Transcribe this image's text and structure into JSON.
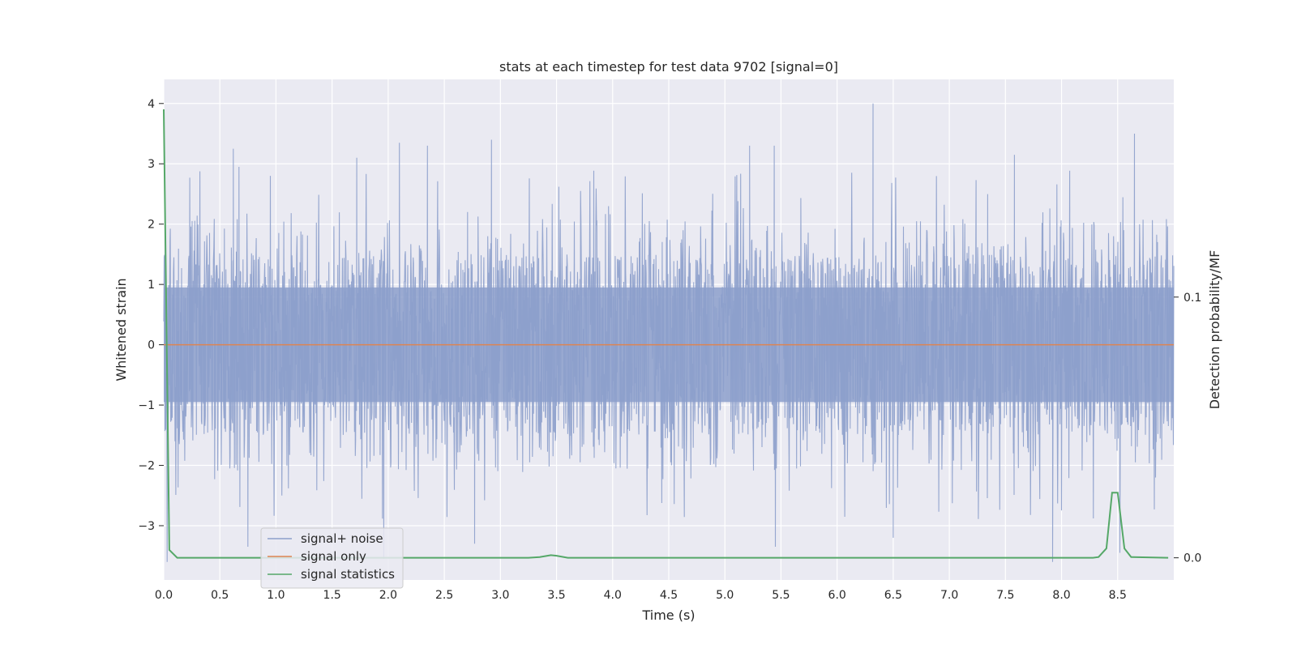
{
  "colors": {
    "plot_background": "#eaeaf2",
    "grid": "#ffffff",
    "signal_noise": "#8c9fcb",
    "signal_only": "#dd8452",
    "signal_statistics": "#55a868",
    "text": "#262626"
  },
  "chart_data": {
    "type": "line",
    "title": "stats at each timestep for test data 9702 [signal=0]",
    "xlabel": "Time (s)",
    "ylabel": "Whitened strain",
    "y2label": "Detection probability/MF",
    "xlim": [
      0.0,
      9.0
    ],
    "ylim": [
      -3.9,
      4.4
    ],
    "y2lim": [
      -0.0085,
      0.1835
    ],
    "x_ticks": [
      0.0,
      0.5,
      1.0,
      1.5,
      2.0,
      2.5,
      3.0,
      3.5,
      4.0,
      4.5,
      5.0,
      5.5,
      6.0,
      6.5,
      7.0,
      7.5,
      8.0,
      8.5
    ],
    "x_tick_labels": [
      "0.0",
      "0.5",
      "1.0",
      "1.5",
      "2.0",
      "2.5",
      "3.0",
      "3.5",
      "4.0",
      "4.5",
      "5.0",
      "5.5",
      "6.0",
      "6.5",
      "7.0",
      "7.5",
      "8.0",
      "8.5"
    ],
    "y_ticks": [
      4,
      3,
      2,
      1,
      0,
      -1,
      -2,
      -3
    ],
    "y_tick_labels": [
      "4",
      "3",
      "2",
      "1",
      "0",
      "−1",
      "−2",
      "−3"
    ],
    "y2_ticks": [
      0.1,
      0.0
    ],
    "y2_tick_labels": [
      "0.1",
      "0.0"
    ],
    "grid": true,
    "legend_position": "lower-left",
    "series": [
      {
        "name": "signal+ noise",
        "axis": "left",
        "kind": "noise_band",
        "description_values": {
          "x_range": [
            0.0,
            9.0
          ],
          "typical_upper": [
            1.0,
            2.1
          ],
          "typical_lower": [
            -1.0,
            -2.2
          ],
          "peaks": [
            {
              "x": 0.62,
              "y": 3.25
            },
            {
              "x": 0.67,
              "y": 2.95
            },
            {
              "x": 0.95,
              "y": 2.8
            },
            {
              "x": 1.72,
              "y": 3.1
            },
            {
              "x": 2.1,
              "y": 3.35
            },
            {
              "x": 2.35,
              "y": 3.3
            },
            {
              "x": 2.92,
              "y": 3.4
            },
            {
              "x": 5.22,
              "y": 3.3
            },
            {
              "x": 5.44,
              "y": 3.3
            },
            {
              "x": 6.32,
              "y": 4.0
            },
            {
              "x": 7.58,
              "y": 3.15
            },
            {
              "x": 8.65,
              "y": 3.5
            }
          ],
          "troughs": [
            {
              "x": 0.03,
              "y": -3.6
            },
            {
              "x": 0.75,
              "y": -3.35
            },
            {
              "x": 1.96,
              "y": -3.55
            },
            {
              "x": 2.77,
              "y": -3.3
            },
            {
              "x": 5.45,
              "y": -3.35
            },
            {
              "x": 6.5,
              "y": -3.2
            },
            {
              "x": 7.92,
              "y": -3.6
            },
            {
              "x": 8.52,
              "y": -3.45
            }
          ]
        }
      },
      {
        "name": "signal only",
        "axis": "left",
        "x": [
          0.0,
          9.0
        ],
        "y": [
          0.0,
          0.0
        ]
      },
      {
        "name": "signal statistics",
        "axis": "right",
        "x": [
          0.0,
          0.05,
          0.12,
          3.25,
          3.35,
          3.45,
          3.5,
          3.6,
          8.28,
          8.33,
          8.4,
          8.45,
          8.5,
          8.56,
          8.62,
          8.95
        ],
        "y": [
          0.172,
          0.003,
          0.0,
          0.0,
          0.0003,
          0.001,
          0.0008,
          0.0,
          0.0,
          0.0003,
          0.0036,
          0.025,
          0.025,
          0.0036,
          0.0003,
          0.0
        ]
      }
    ]
  }
}
